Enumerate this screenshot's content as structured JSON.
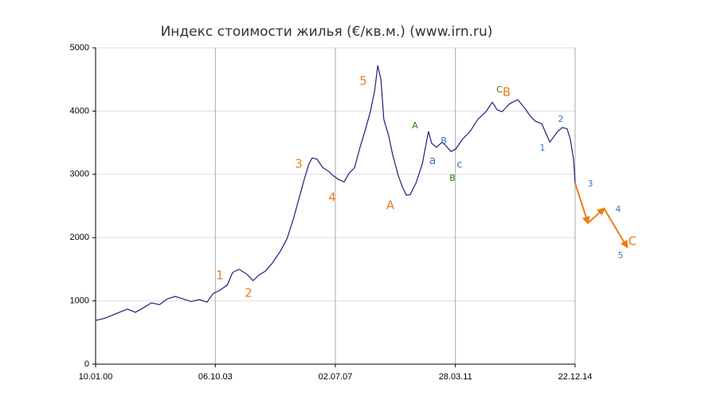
{
  "chart_data": {
    "type": "line",
    "title": "Индекс стоимости жилья (€/кв.м.) (www.irn.ru)",
    "xlim": [
      2000.03,
      2014.97
    ],
    "xticks": [
      {
        "value": 2000.03,
        "label": "10.01.00"
      },
      {
        "value": 2003.76,
        "label": "06.10.03"
      },
      {
        "value": 2007.5,
        "label": "02.07.07"
      },
      {
        "value": 2011.24,
        "label": "28.03.11"
      },
      {
        "value": 2014.97,
        "label": "22.12.14"
      }
    ],
    "ylim": [
      0,
      5000
    ],
    "yticks": [
      0,
      1000,
      2000,
      3000,
      4000,
      5000
    ],
    "grid": true,
    "series": [
      {
        "color": "#1f1f7a",
        "x": [
          2000.03,
          2000.28,
          2000.53,
          2000.77,
          2001.02,
          2001.27,
          2001.52,
          2001.77,
          2002.02,
          2002.26,
          2002.51,
          2002.76,
          2003.01,
          2003.26,
          2003.5,
          2003.7,
          2003.88,
          2004.13,
          2004.3,
          2004.5,
          2004.75,
          2004.94,
          2005.12,
          2005.32,
          2005.54,
          2005.79,
          2005.99,
          2006.19,
          2006.36,
          2006.53,
          2006.68,
          2006.78,
          2006.93,
          2007.1,
          2007.28,
          2007.43,
          2007.6,
          2007.77,
          2007.92,
          2008.1,
          2008.27,
          2008.42,
          2008.59,
          2008.72,
          2008.82,
          2008.92,
          2009.01,
          2009.16,
          2009.29,
          2009.46,
          2009.59,
          2009.71,
          2009.83,
          2010.01,
          2010.21,
          2010.4,
          2010.5,
          2010.65,
          2010.83,
          2010.95,
          2011.1,
          2011.25,
          2011.45,
          2011.7,
          2011.94,
          2012.19,
          2012.39,
          2012.54,
          2012.69,
          2012.94,
          2013.18,
          2013.38,
          2013.56,
          2013.73,
          2013.93,
          2014.18,
          2014.43,
          2014.57,
          2014.72,
          2014.82,
          2014.92,
          2014.97
        ],
        "values": [
          690,
          720,
          770,
          820,
          870,
          820,
          890,
          970,
          940,
          1030,
          1070,
          1030,
          990,
          1020,
          980,
          1120,
          1160,
          1250,
          1450,
          1500,
          1420,
          1320,
          1410,
          1470,
          1600,
          1790,
          1980,
          2290,
          2610,
          2920,
          3170,
          3260,
          3240,
          3110,
          3050,
          2980,
          2920,
          2880,
          3010,
          3110,
          3430,
          3680,
          3990,
          4310,
          4720,
          4500,
          3870,
          3610,
          3300,
          2980,
          2800,
          2670,
          2680,
          2860,
          3170,
          3680,
          3490,
          3430,
          3510,
          3450,
          3360,
          3400,
          3550,
          3680,
          3870,
          3990,
          4140,
          4020,
          3990,
          4120,
          4180,
          4060,
          3930,
          3840,
          3800,
          3510,
          3680,
          3740,
          3720,
          3550,
          3240,
          2860
        ]
      },
      {
        "color": "#f07c14",
        "arrows": true,
        "x": [
          2014.97,
          2015.37,
          2015.87,
          2016.59
        ],
        "values": [
          2860,
          2230,
          2460,
          1850
        ]
      }
    ],
    "annotations": [
      {
        "text": "1",
        "color": "#f07c14"
      },
      {
        "text": "2",
        "color": "#f07c14"
      },
      {
        "text": "3",
        "color": "#f07c14"
      },
      {
        "text": "4",
        "color": "#f07c14"
      },
      {
        "text": "5",
        "color": "#f07c14"
      },
      {
        "text": "A",
        "color": "#f07c14"
      },
      {
        "text": "A",
        "color": "#2a7a12"
      },
      {
        "text": "a",
        "color": "#3a7ac0"
      },
      {
        "text": "B",
        "color": "#3a7ac0"
      },
      {
        "text": "B",
        "color": "#2a7a12"
      },
      {
        "text": "c",
        "color": "#3a7ac0"
      },
      {
        "text": "C",
        "color": "#2a7a12"
      },
      {
        "text": "B",
        "color": "#f07c14"
      },
      {
        "text": "1",
        "color": "#3a7ac0"
      },
      {
        "text": "2",
        "color": "#3a7ac0"
      },
      {
        "text": "3",
        "color": "#3a7ac0"
      },
      {
        "text": "4",
        "color": "#3a7ac0"
      },
      {
        "text": "C",
        "color": "#f07c14"
      },
      {
        "text": "5",
        "color": "#3a7ac0"
      }
    ]
  }
}
